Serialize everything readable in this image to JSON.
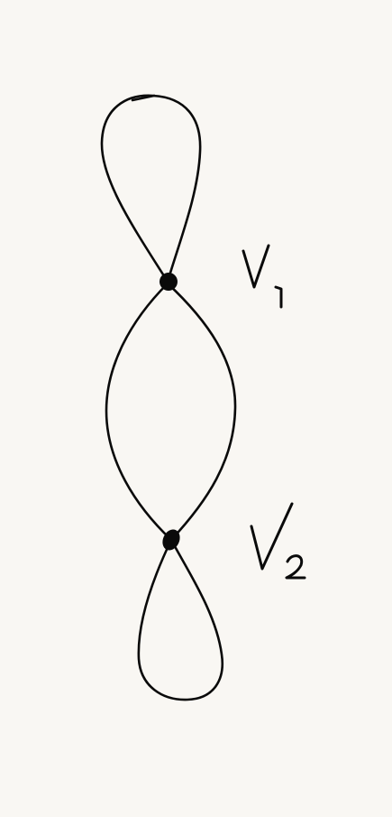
{
  "graph": {
    "vertices": [
      {
        "id": "v1",
        "label": "V1"
      },
      {
        "id": "v2",
        "label": "V2"
      }
    ],
    "edges": [
      {
        "from": "v1",
        "to": "v1",
        "kind": "loop"
      },
      {
        "from": "v1",
        "to": "v2",
        "kind": "edge"
      },
      {
        "from": "v1",
        "to": "v2",
        "kind": "edge"
      },
      {
        "from": "v2",
        "to": "v2",
        "kind": "loop"
      }
    ]
  },
  "colors": {
    "background": "#f9f7f3",
    "ink": "#0a0a0a"
  }
}
